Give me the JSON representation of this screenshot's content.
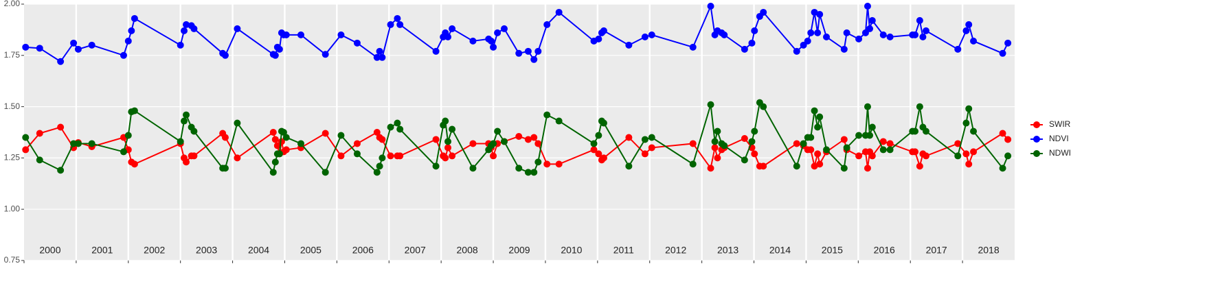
{
  "chart_data": {
    "type": "line",
    "x": [
      2000.03,
      2000.3,
      2000.7,
      2000.95,
      2001.04,
      2001.3,
      2001.91,
      2002.0,
      2002.06,
      2002.12,
      2003.0,
      2003.07,
      2003.11,
      2003.21,
      2003.26,
      2003.81,
      2003.86,
      2004.09,
      2004.78,
      2004.82,
      2004.86,
      2004.9,
      2004.94,
      2004.98,
      2005.03,
      2005.31,
      2005.78,
      2006.08,
      2006.39,
      2006.77,
      2006.82,
      2006.87,
      2007.03,
      2007.16,
      2007.21,
      2007.9,
      2008.04,
      2008.08,
      2008.13,
      2008.21,
      2008.61,
      2008.91,
      2008.96,
      2009.0,
      2009.08,
      2009.21,
      2009.49,
      2009.67,
      2009.78,
      2009.86,
      2010.03,
      2010.26,
      2010.93,
      2011.02,
      2011.08,
      2011.12,
      2011.6,
      2011.91,
      2012.04,
      2012.83,
      2013.17,
      2013.25,
      2013.3,
      2013.38,
      2013.43,
      2013.82,
      2013.96,
      2014.01,
      2014.11,
      2014.18,
      2014.82,
      2014.95,
      2015.03,
      2015.09,
      2015.16,
      2015.22,
      2015.26,
      2015.39,
      2015.73,
      2015.78,
      2016.01,
      2016.14,
      2016.18,
      2016.22,
      2016.27,
      2016.48,
      2016.61,
      2017.04,
      2017.09,
      2017.18,
      2017.24,
      2017.3,
      2017.91,
      2018.07,
      2018.12,
      2018.21,
      2018.77,
      2018.87
    ],
    "series": [
      {
        "name": "SWIR",
        "color": "#ff0000",
        "values": [
          1.29,
          1.37,
          1.4,
          1.3,
          1.325,
          1.305,
          1.35,
          1.29,
          1.23,
          1.22,
          1.32,
          1.25,
          1.23,
          1.26,
          1.26,
          1.37,
          1.35,
          1.25,
          1.375,
          1.34,
          1.31,
          1.27,
          1.33,
          1.28,
          1.29,
          1.3,
          1.37,
          1.26,
          1.32,
          1.375,
          1.35,
          1.34,
          1.26,
          1.26,
          1.26,
          1.34,
          1.26,
          1.25,
          1.3,
          1.26,
          1.32,
          1.32,
          1.3,
          1.26,
          1.32,
          1.33,
          1.355,
          1.34,
          1.35,
          1.32,
          1.22,
          1.22,
          1.29,
          1.27,
          1.24,
          1.25,
          1.35,
          1.27,
          1.3,
          1.32,
          1.2,
          1.3,
          1.25,
          1.29,
          1.3,
          1.345,
          1.3,
          1.27,
          1.21,
          1.21,
          1.32,
          1.31,
          1.29,
          1.29,
          1.21,
          1.27,
          1.22,
          1.28,
          1.34,
          1.29,
          1.26,
          1.28,
          1.2,
          1.28,
          1.26,
          1.33,
          1.32,
          1.28,
          1.28,
          1.21,
          1.27,
          1.26,
          1.32,
          1.27,
          1.22,
          1.28,
          1.37,
          1.34
        ]
      },
      {
        "name": "NDVI",
        "color": "#0000ff",
        "values": [
          1.79,
          1.785,
          1.72,
          1.81,
          1.78,
          1.8,
          1.75,
          1.82,
          1.87,
          1.93,
          1.8,
          1.87,
          1.9,
          1.895,
          1.88,
          1.76,
          1.75,
          1.88,
          1.755,
          1.75,
          1.79,
          1.78,
          1.86,
          1.85,
          1.85,
          1.85,
          1.755,
          1.85,
          1.81,
          1.74,
          1.77,
          1.74,
          1.9,
          1.93,
          1.9,
          1.77,
          1.84,
          1.86,
          1.84,
          1.88,
          1.82,
          1.83,
          1.82,
          1.79,
          1.86,
          1.88,
          1.76,
          1.77,
          1.73,
          1.77,
          1.9,
          1.96,
          1.82,
          1.83,
          1.86,
          1.87,
          1.8,
          1.84,
          1.85,
          1.79,
          1.99,
          1.85,
          1.87,
          1.86,
          1.85,
          1.78,
          1.81,
          1.87,
          1.94,
          1.96,
          1.77,
          1.8,
          1.82,
          1.86,
          1.96,
          1.86,
          1.95,
          1.84,
          1.78,
          1.86,
          1.83,
          1.86,
          1.99,
          1.88,
          1.92,
          1.85,
          1.84,
          1.85,
          1.85,
          1.92,
          1.84,
          1.87,
          1.78,
          1.87,
          1.9,
          1.82,
          1.76,
          1.81
        ]
      },
      {
        "name": "NDWI",
        "color": "#006400",
        "values": [
          1.35,
          1.24,
          1.19,
          1.32,
          1.32,
          1.32,
          1.28,
          1.36,
          1.475,
          1.48,
          1.33,
          1.43,
          1.46,
          1.4,
          1.38,
          1.2,
          1.2,
          1.42,
          1.18,
          1.23,
          1.27,
          1.27,
          1.38,
          1.375,
          1.35,
          1.32,
          1.18,
          1.36,
          1.27,
          1.18,
          1.21,
          1.25,
          1.4,
          1.42,
          1.39,
          1.21,
          1.41,
          1.43,
          1.33,
          1.39,
          1.2,
          1.29,
          1.31,
          1.32,
          1.38,
          1.33,
          1.2,
          1.18,
          1.18,
          1.23,
          1.46,
          1.43,
          1.32,
          1.36,
          1.43,
          1.42,
          1.21,
          1.34,
          1.35,
          1.22,
          1.51,
          1.33,
          1.38,
          1.32,
          1.31,
          1.24,
          1.33,
          1.38,
          1.52,
          1.5,
          1.21,
          1.32,
          1.35,
          1.35,
          1.48,
          1.4,
          1.45,
          1.29,
          1.2,
          1.3,
          1.36,
          1.36,
          1.5,
          1.36,
          1.4,
          1.29,
          1.29,
          1.38,
          1.38,
          1.5,
          1.4,
          1.38,
          1.26,
          1.42,
          1.49,
          1.38,
          1.2,
          1.26
        ]
      }
    ],
    "xlim": [
      2000,
      2019
    ],
    "year_labels": [
      2000,
      2001,
      2002,
      2003,
      2004,
      2005,
      2006,
      2007,
      2008,
      2009,
      2010,
      2011,
      2012,
      2013,
      2014,
      2015,
      2016,
      2017,
      2018
    ],
    "ylim": [
      0.75,
      2.0
    ],
    "yticks": [
      {
        "value": 0.75,
        "label": "0.75"
      },
      {
        "value": 1.0,
        "label": "1.00"
      },
      {
        "value": 1.25,
        "label": "1.25"
      },
      {
        "value": 1.5,
        "label": "1.50"
      },
      {
        "value": 1.75,
        "label": "1.75"
      },
      {
        "value": 2.0,
        "label": "2.00"
      }
    ],
    "grid": true
  }
}
